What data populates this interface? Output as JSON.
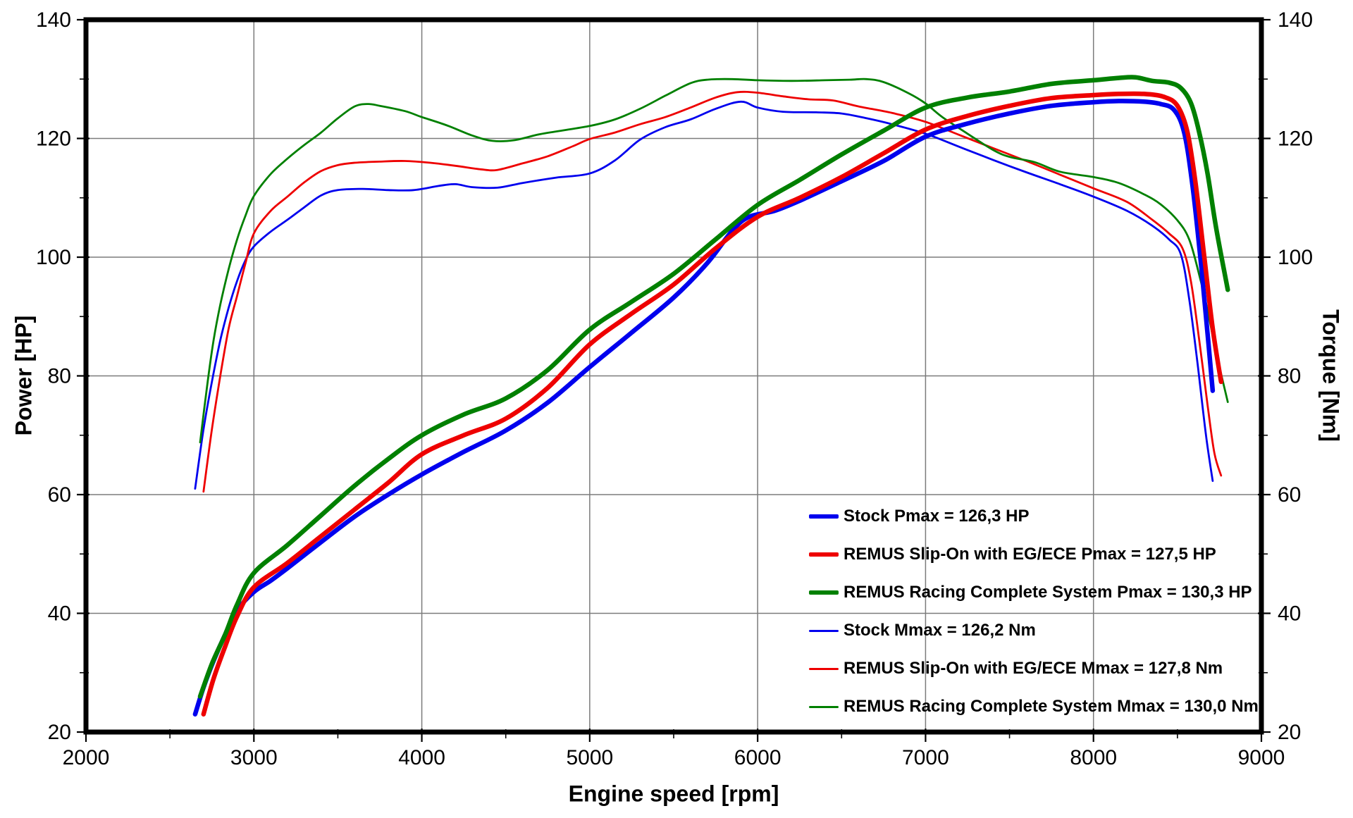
{
  "chart_data": {
    "type": "line",
    "title": "",
    "xlabel": "Engine speed [rpm]",
    "ylabel_left": "Power [HP]",
    "ylabel_right": "Torque [Nm]",
    "x_range": [
      2000,
      9000
    ],
    "y_range": [
      20,
      140
    ],
    "x_major_step": 1000,
    "x_minor_step": 500,
    "y_major_step": 20,
    "y_minor_step": 10,
    "grid": "major-only",
    "legend_position": "inside-bottom-right",
    "colors": {
      "background": "#ffffff",
      "frame": "#000000",
      "grid": "#7b7b7b",
      "stock": "#0000ee",
      "slipon": "#ee0000",
      "racing": "#008000"
    },
    "series": [
      {
        "id": "stock-torque",
        "legend": "Stock Mmax = 126,2 Nm",
        "color": "#0000ee",
        "width": 2.8,
        "axis": "torque",
        "points": [
          [
            2650,
            61
          ],
          [
            2700,
            71
          ],
          [
            2750,
            79
          ],
          [
            2800,
            86
          ],
          [
            2850,
            91.5
          ],
          [
            2900,
            96
          ],
          [
            2950,
            99.5
          ],
          [
            3000,
            101.8
          ],
          [
            3100,
            104.3
          ],
          [
            3200,
            106.3
          ],
          [
            3300,
            108.4
          ],
          [
            3400,
            110.4
          ],
          [
            3500,
            111.3
          ],
          [
            3650,
            111.5
          ],
          [
            3800,
            111.3
          ],
          [
            3950,
            111.3
          ],
          [
            4100,
            112
          ],
          [
            4200,
            112.3
          ],
          [
            4300,
            111.8
          ],
          [
            4450,
            111.7
          ],
          [
            4600,
            112.5
          ],
          [
            4800,
            113.4
          ],
          [
            5000,
            114.1
          ],
          [
            5150,
            116.3
          ],
          [
            5300,
            119.8
          ],
          [
            5450,
            121.9
          ],
          [
            5600,
            123.2
          ],
          [
            5750,
            125
          ],
          [
            5900,
            126.2
          ],
          [
            6000,
            125.2
          ],
          [
            6150,
            124.5
          ],
          [
            6350,
            124.4
          ],
          [
            6500,
            124.2
          ],
          [
            6650,
            123.4
          ],
          [
            6800,
            122.4
          ],
          [
            7000,
            120.8
          ],
          [
            7200,
            118.6
          ],
          [
            7400,
            116.4
          ],
          [
            7600,
            114.3
          ],
          [
            7800,
            112.3
          ],
          [
            8000,
            110.2
          ],
          [
            8200,
            107.8
          ],
          [
            8350,
            105.3
          ],
          [
            8450,
            103
          ],
          [
            8520,
            100.5
          ],
          [
            8570,
            93
          ],
          [
            8620,
            82
          ],
          [
            8670,
            70
          ],
          [
            8710,
            62.3
          ]
        ]
      },
      {
        "id": "slipon-torque",
        "legend": "REMUS Slip-On with EG/ECE Mmax = 127,8 Nm",
        "color": "#ee0000",
        "width": 2.8,
        "axis": "torque",
        "points": [
          [
            2700,
            60.5
          ],
          [
            2750,
            71
          ],
          [
            2800,
            80
          ],
          [
            2850,
            88
          ],
          [
            2900,
            93.5
          ],
          [
            2950,
            99
          ],
          [
            3000,
            104
          ],
          [
            3100,
            107.8
          ],
          [
            3200,
            110.2
          ],
          [
            3300,
            112.6
          ],
          [
            3400,
            114.5
          ],
          [
            3500,
            115.5
          ],
          [
            3600,
            115.9
          ],
          [
            3750,
            116.1
          ],
          [
            3900,
            116.2
          ],
          [
            4050,
            115.9
          ],
          [
            4200,
            115.4
          ],
          [
            4350,
            114.8
          ],
          [
            4450,
            114.7
          ],
          [
            4600,
            115.8
          ],
          [
            4750,
            117
          ],
          [
            4900,
            118.7
          ],
          [
            5000,
            119.9
          ],
          [
            5150,
            121
          ],
          [
            5300,
            122.4
          ],
          [
            5450,
            123.6
          ],
          [
            5600,
            125.2
          ],
          [
            5750,
            126.9
          ],
          [
            5880,
            127.8
          ],
          [
            6000,
            127.7
          ],
          [
            6150,
            127.1
          ],
          [
            6300,
            126.6
          ],
          [
            6450,
            126.4
          ],
          [
            6600,
            125.4
          ],
          [
            6800,
            124.3
          ],
          [
            7000,
            122.8
          ],
          [
            7200,
            120.6
          ],
          [
            7400,
            118.4
          ],
          [
            7600,
            116.2
          ],
          [
            7800,
            113.9
          ],
          [
            8000,
            111.6
          ],
          [
            8200,
            109.3
          ],
          [
            8350,
            106.3
          ],
          [
            8450,
            104
          ],
          [
            8530,
            101.5
          ],
          [
            8580,
            96
          ],
          [
            8630,
            86
          ],
          [
            8680,
            75
          ],
          [
            8720,
            67
          ],
          [
            8760,
            63.2
          ]
        ]
      },
      {
        "id": "racing-torque",
        "legend": "REMUS Racing Complete System Mmax = 130,0 Nm",
        "color": "#008000",
        "width": 2.8,
        "axis": "torque",
        "points": [
          [
            2680,
            68.8
          ],
          [
            2720,
            78
          ],
          [
            2760,
            86
          ],
          [
            2800,
            92
          ],
          [
            2850,
            98
          ],
          [
            2900,
            103
          ],
          [
            2950,
            107
          ],
          [
            3000,
            110.3
          ],
          [
            3100,
            114
          ],
          [
            3200,
            116.6
          ],
          [
            3300,
            118.9
          ],
          [
            3400,
            121
          ],
          [
            3500,
            123.4
          ],
          [
            3600,
            125.4
          ],
          [
            3680,
            125.8
          ],
          [
            3750,
            125.5
          ],
          [
            3900,
            124.6
          ],
          [
            4000,
            123.6
          ],
          [
            4150,
            122.2
          ],
          [
            4300,
            120.5
          ],
          [
            4420,
            119.6
          ],
          [
            4550,
            119.7
          ],
          [
            4700,
            120.7
          ],
          [
            4850,
            121.4
          ],
          [
            5000,
            122.1
          ],
          [
            5150,
            123.2
          ],
          [
            5300,
            125
          ],
          [
            5450,
            127.2
          ],
          [
            5600,
            129.3
          ],
          [
            5700,
            129.9
          ],
          [
            5850,
            130
          ],
          [
            6000,
            129.8
          ],
          [
            6200,
            129.7
          ],
          [
            6400,
            129.8
          ],
          [
            6550,
            129.9
          ],
          [
            6650,
            130
          ],
          [
            6750,
            129.5
          ],
          [
            6900,
            127.6
          ],
          [
            7000,
            125.9
          ],
          [
            7100,
            123.6
          ],
          [
            7250,
            120.8
          ],
          [
            7400,
            118.1
          ],
          [
            7500,
            116.9
          ],
          [
            7650,
            116
          ],
          [
            7800,
            114.4
          ],
          [
            8000,
            113.5
          ],
          [
            8150,
            112.5
          ],
          [
            8300,
            110.6
          ],
          [
            8400,
            108.9
          ],
          [
            8500,
            106.2
          ],
          [
            8570,
            103
          ],
          [
            8630,
            97
          ],
          [
            8680,
            91
          ],
          [
            8730,
            84
          ],
          [
            8800,
            75.6
          ]
        ]
      },
      {
        "id": "stock-power",
        "legend": "Stock Pmax = 126,3 HP",
        "color": "#0000ee",
        "width": 6.5,
        "axis": "power",
        "points": [
          [
            2650,
            23
          ],
          [
            2700,
            27.5
          ],
          [
            2760,
            32
          ],
          [
            2830,
            36.5
          ],
          [
            2900,
            40.5
          ],
          [
            3000,
            43.6
          ],
          [
            3100,
            45.5
          ],
          [
            3200,
            47.6
          ],
          [
            3400,
            52
          ],
          [
            3600,
            56.3
          ],
          [
            3800,
            60
          ],
          [
            4000,
            63.4
          ],
          [
            4250,
            67.2
          ],
          [
            4500,
            70.8
          ],
          [
            4750,
            75.5
          ],
          [
            5000,
            81.5
          ],
          [
            5250,
            87.3
          ],
          [
            5500,
            93.2
          ],
          [
            5700,
            99
          ],
          [
            5850,
            104.5
          ],
          [
            5950,
            106.8
          ],
          [
            6100,
            107.8
          ],
          [
            6250,
            109.5
          ],
          [
            6500,
            112.8
          ],
          [
            6750,
            116.2
          ],
          [
            7000,
            120.3
          ],
          [
            7250,
            122.5
          ],
          [
            7500,
            124.2
          ],
          [
            7750,
            125.5
          ],
          [
            8000,
            126.1
          ],
          [
            8150,
            126.3
          ],
          [
            8300,
            126.2
          ],
          [
            8400,
            125.8
          ],
          [
            8480,
            124.8
          ],
          [
            8540,
            121
          ],
          [
            8590,
            112
          ],
          [
            8640,
            99
          ],
          [
            8680,
            87
          ],
          [
            8710,
            77.5
          ]
        ]
      },
      {
        "id": "slipon-power",
        "legend": "REMUS Slip-On with EG/ECE Pmax = 127,5 HP",
        "color": "#ee0000",
        "width": 6.5,
        "axis": "power",
        "points": [
          [
            2700,
            23
          ],
          [
            2760,
            29
          ],
          [
            2830,
            34.5
          ],
          [
            2900,
            39.5
          ],
          [
            3000,
            44.4
          ],
          [
            3200,
            48.5
          ],
          [
            3400,
            53
          ],
          [
            3600,
            57.5
          ],
          [
            3800,
            62
          ],
          [
            4000,
            66.8
          ],
          [
            4250,
            70
          ],
          [
            4500,
            72.8
          ],
          [
            4750,
            78
          ],
          [
            5000,
            85.3
          ],
          [
            5250,
            90.5
          ],
          [
            5500,
            95.4
          ],
          [
            5750,
            101.5
          ],
          [
            6000,
            106.8
          ],
          [
            6250,
            110
          ],
          [
            6500,
            113.5
          ],
          [
            6750,
            117.5
          ],
          [
            7000,
            121.5
          ],
          [
            7250,
            123.8
          ],
          [
            7500,
            125.5
          ],
          [
            7750,
            126.8
          ],
          [
            8000,
            127.3
          ],
          [
            8150,
            127.5
          ],
          [
            8300,
            127.5
          ],
          [
            8420,
            127
          ],
          [
            8500,
            125.5
          ],
          [
            8560,
            121
          ],
          [
            8610,
            112
          ],
          [
            8660,
            100
          ],
          [
            8710,
            88
          ],
          [
            8760,
            79
          ]
        ]
      },
      {
        "id": "racing-power",
        "legend": "REMUS Racing Complete System Pmax = 130,3 HP",
        "color": "#008000",
        "width": 6.5,
        "axis": "power",
        "points": [
          [
            2680,
            26
          ],
          [
            2750,
            31.5
          ],
          [
            2830,
            36.5
          ],
          [
            2900,
            41.5
          ],
          [
            3000,
            46.8
          ],
          [
            3200,
            51.5
          ],
          [
            3400,
            56.5
          ],
          [
            3600,
            61.5
          ],
          [
            3800,
            66
          ],
          [
            4000,
            70
          ],
          [
            4250,
            73.5
          ],
          [
            4500,
            76.2
          ],
          [
            4750,
            81
          ],
          [
            5000,
            87.8
          ],
          [
            5250,
            92.5
          ],
          [
            5500,
            97.2
          ],
          [
            5750,
            103
          ],
          [
            6000,
            108.8
          ],
          [
            6250,
            113
          ],
          [
            6500,
            117.3
          ],
          [
            6750,
            121.3
          ],
          [
            7000,
            125.2
          ],
          [
            7250,
            126.9
          ],
          [
            7500,
            127.9
          ],
          [
            7750,
            129.2
          ],
          [
            8000,
            129.8
          ],
          [
            8150,
            130.2
          ],
          [
            8250,
            130.3
          ],
          [
            8350,
            129.7
          ],
          [
            8450,
            129.4
          ],
          [
            8520,
            128.5
          ],
          [
            8580,
            126
          ],
          [
            8630,
            121
          ],
          [
            8680,
            114
          ],
          [
            8730,
            105
          ],
          [
            8800,
            94.5
          ]
        ]
      }
    ],
    "legend_order": [
      "stock-power",
      "slipon-power",
      "racing-power",
      "stock-torque",
      "slipon-torque",
      "racing-torque"
    ],
    "x_tick_labels": [
      "2000",
      "3000",
      "4000",
      "5000",
      "6000",
      "7000",
      "8000",
      "9000"
    ],
    "y_tick_labels": [
      "20",
      "40",
      "60",
      "80",
      "100",
      "120",
      "140"
    ]
  }
}
